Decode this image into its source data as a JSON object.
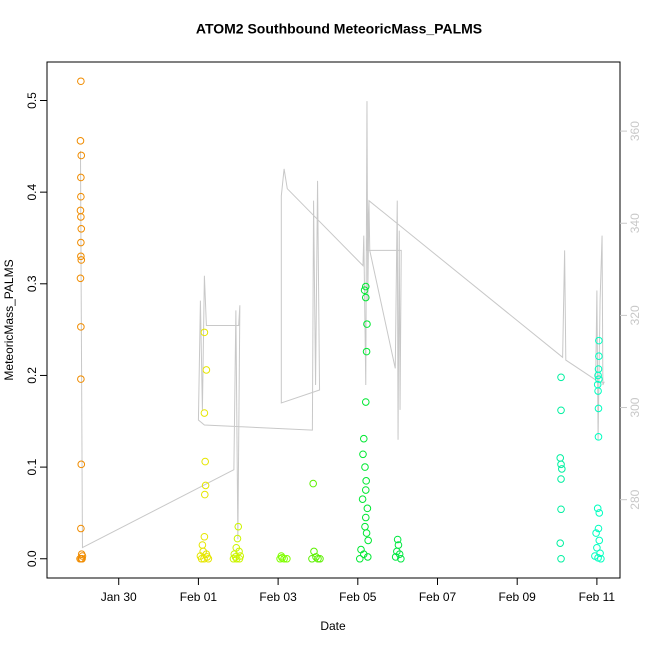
{
  "chart_data": {
    "type": "scatter",
    "title": "ATOM2 Southbound MeteoricMass_PALMS",
    "xlabel": "Date",
    "ylabel": "MeteoricMass_PALMS",
    "xlim": [
      28.2,
      42.58
    ],
    "ylim": [
      -0.021,
      0.542
    ],
    "y2lim": [
      263,
      375
    ],
    "xticks": [
      {
        "value": 30,
        "label": "Jan 30"
      },
      {
        "value": 32,
        "label": "Feb 01"
      },
      {
        "value": 34,
        "label": "Feb 03"
      },
      {
        "value": 36,
        "label": "Feb 05"
      },
      {
        "value": 38,
        "label": "Feb 07"
      },
      {
        "value": 40,
        "label": "Feb 09"
      },
      {
        "value": 42,
        "label": "Feb 11"
      }
    ],
    "yticks": [
      {
        "value": 0,
        "label": "0.0"
      },
      0.1,
      0.2,
      0.3,
      0.4,
      0.5
    ],
    "y2ticks": [
      280,
      300,
      320,
      340,
      360
    ],
    "y2color": "#c8c8c8",
    "series": [
      {
        "color": "#f08c00",
        "x": [
          29.05,
          29.04,
          29.06,
          29.05,
          29.05,
          29.04,
          29.05,
          29.06,
          29.05,
          29.05,
          29.06,
          29.04,
          29.05,
          29.05,
          29.06,
          29.05,
          29.07,
          29.09,
          29.03,
          29.08,
          29.06
        ],
        "values": [
          0.521,
          0.456,
          0.44,
          0.416,
          0.395,
          0.38,
          0.373,
          0.36,
          0.345,
          0.33,
          0.326,
          0.306,
          0.253,
          0.196,
          0.103,
          0.033,
          0.005,
          0.003,
          0,
          0,
          0
        ]
      },
      {
        "color": "#e6e600",
        "x": [
          32.15,
          32.2,
          32.15,
          32.17,
          32.18,
          32.16,
          32.15,
          32.1,
          32.12,
          32.2,
          32.05,
          32.22,
          32.08,
          32.14,
          32.25
        ],
        "values": [
          0.247,
          0.206,
          0.159,
          0.106,
          0.08,
          0.07,
          0.024,
          0.015,
          0.008,
          0.005,
          0.003,
          0.002,
          0,
          0,
          0
        ]
      },
      {
        "color": "#ccf500",
        "x": [
          33.0,
          32.98,
          32.95,
          33.02,
          32.9,
          33.05,
          32.93,
          32.96,
          33.03,
          32.88
        ],
        "values": [
          0.035,
          0.022,
          0.012,
          0.008,
          0.005,
          0.003,
          0.002,
          0,
          0,
          0
        ]
      },
      {
        "color": "#80ff00",
        "x": [
          34.08,
          34.1,
          34.05,
          34.15,
          34.22
        ],
        "values": [
          0.003,
          0.001,
          0,
          0,
          0
        ]
      },
      {
        "color": "#5cf000",
        "x": [
          34.88,
          34.9,
          34.95,
          34.85,
          35.0,
          35.05
        ],
        "values": [
          0.082,
          0.008,
          0.002,
          0,
          0,
          0
        ]
      },
      {
        "color": "#00e832",
        "x": [
          36.2,
          36.17,
          36.2,
          36.23,
          36.22,
          36.2,
          36.15,
          36.13,
          36.18,
          36.21,
          36.2,
          36.12,
          36.24,
          36.2,
          36.18,
          36.22,
          36.26,
          36.08,
          36.15,
          36.25,
          36.05
        ],
        "values": [
          0.297,
          0.293,
          0.285,
          0.256,
          0.226,
          0.171,
          0.131,
          0.114,
          0.1,
          0.085,
          0.075,
          0.065,
          0.055,
          0.045,
          0.035,
          0.028,
          0.02,
          0.01,
          0.005,
          0.002,
          0
        ]
      },
      {
        "color": "#00e840",
        "x": [
          37.0,
          37.02,
          36.98,
          37.05,
          36.95,
          37.08
        ],
        "values": [
          0.021,
          0.015,
          0.008,
          0.005,
          0.002,
          0
        ]
      },
      {
        "color": "#00f0a0",
        "x": [
          41.1,
          41.1,
          41.08,
          41.1,
          41.12,
          41.1,
          41.1,
          41.08,
          41.1
        ],
        "values": [
          0.198,
          0.162,
          0.11,
          0.103,
          0.098,
          0.087,
          0.054,
          0.017,
          0
        ]
      },
      {
        "color": "#00ffc0",
        "x": [
          42.05,
          42.05,
          42.04,
          42.03,
          42.05,
          42.02,
          42.03,
          42.04,
          42.04,
          42.02,
          42.06,
          42.04,
          41.98,
          42.06,
          42.0,
          42.08,
          41.95,
          42.03,
          42.1
        ],
        "values": [
          0.238,
          0.221,
          0.207,
          0.2,
          0.196,
          0.19,
          0.183,
          0.164,
          0.133,
          0.055,
          0.05,
          0.033,
          0.028,
          0.02,
          0.012,
          0.006,
          0.003,
          0.001,
          0
        ]
      },
      {
        "type": "line",
        "axis": "y2",
        "color": "#c8c8c8",
        "x": [
          29.04,
          29.09,
          32.89,
          32.94,
          32.99,
          33.04,
          33.01,
          32.2,
          32.15,
          32.1,
          32.05,
          32.0,
          32.15,
          34.86,
          34.89,
          34.94,
          34.99,
          35.04,
          34.08,
          34.08,
          34.15,
          34.23,
          36.13,
          36.15,
          36.2,
          36.23,
          36.25,
          36.28,
          36.3,
          36.94,
          36.99,
          37.01,
          37.04,
          37.06,
          37.09,
          36.23,
          36.28,
          41.14,
          41.19,
          41.22,
          41.97,
          42.0,
          42.03,
          42.08,
          42.13,
          42.15,
          42.18,
          41.97
        ],
        "values": [
          355.7,
          269.6,
          286.5,
          321.1,
          271.4,
          322.2,
          317.8,
          317.8,
          328.6,
          299.5,
          323.2,
          297.3,
          296.2,
          295.1,
          344.9,
          304.9,
          349.2,
          303.8,
          301.0,
          345.9,
          351.8,
          347.5,
          330.8,
          337.3,
          304.9,
          366.5,
          323.2,
          344.9,
          334.1,
          308.5,
          344.9,
          293.0,
          338.4,
          299.5,
          334.1,
          334.1,
          344.9,
          310.9,
          334.1,
          310.3,
          306.0,
          325.4,
          293.0,
          323.2,
          337.3,
          304.9,
          305.5,
          305.5
        ]
      }
    ]
  }
}
